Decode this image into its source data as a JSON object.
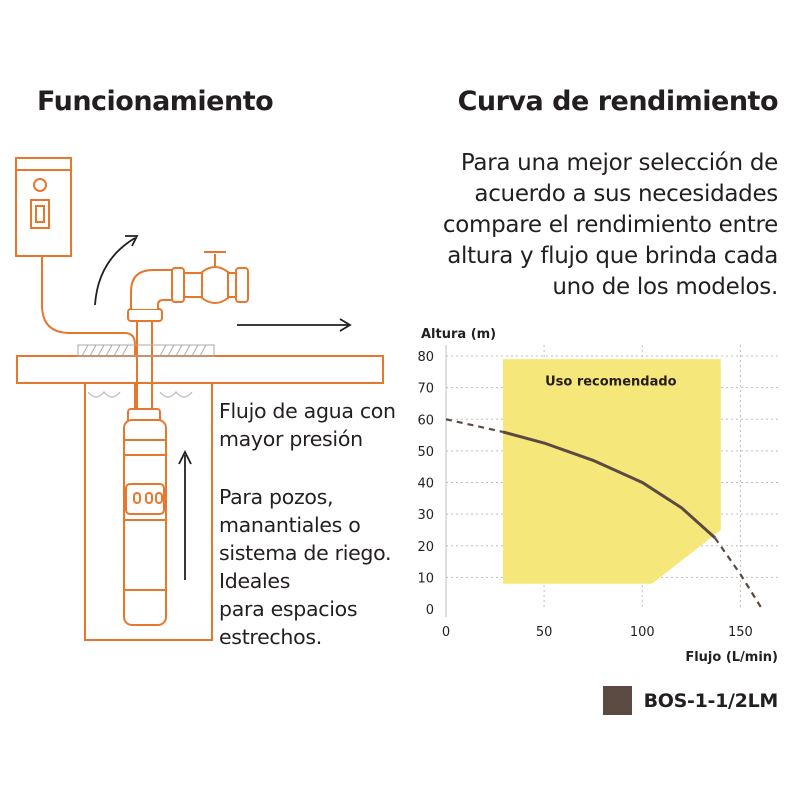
{
  "left_section": {
    "title": "Funcionamiento",
    "feature_1": "Flujo de agua con\nmayor presión",
    "feature_2": "Para pozos,\nmanantiales o\nsistema de riego.\nIdeales\npara espacios\nestrechos.",
    "icons": [
      "control-box-icon",
      "pump-icon",
      "valve-icon",
      "flow-arrow-icon"
    ],
    "colors": {
      "accent": "#e8772e",
      "line": "#555555",
      "ground": "#999999"
    }
  },
  "right_section": {
    "title": "Curva de rendimiento",
    "intro": "Para una mejor selección de acuerdo a sus necesidades compare el rendimiento entre altura y flujo que brinda cada uno de los modelos."
  },
  "chart_data": {
    "type": "line",
    "title": "",
    "xlabel": "Flujo (L/min)",
    "ylabel": "Altura (m)",
    "xlim": [
      0,
      160
    ],
    "ylim": [
      0,
      80
    ],
    "xticks": [
      0,
      50,
      100,
      150
    ],
    "yticks": [
      0,
      10,
      20,
      30,
      40,
      50,
      60,
      70,
      80
    ],
    "grid": "horizontal dashed",
    "recommended_zone": {
      "label": "Uso recomendado",
      "polygon": [
        [
          29,
          8
        ],
        [
          105,
          8
        ],
        [
          140,
          25
        ],
        [
          140,
          79
        ],
        [
          29,
          79
        ]
      ],
      "color": "#f5e77a"
    },
    "series": [
      {
        "name": "BOS-1-1/2LM",
        "color": "#5a4a42",
        "x": [
          0,
          29,
          50,
          75,
          100,
          120,
          137,
          150,
          161
        ],
        "y": [
          60,
          56,
          52.5,
          47,
          40,
          32,
          22.5,
          11,
          0
        ],
        "solid_range": [
          29,
          137
        ]
      }
    ],
    "legend": {
      "position": "bottom-right",
      "label": "BOS-1-1/2LM",
      "color": "#5a4a42"
    }
  }
}
